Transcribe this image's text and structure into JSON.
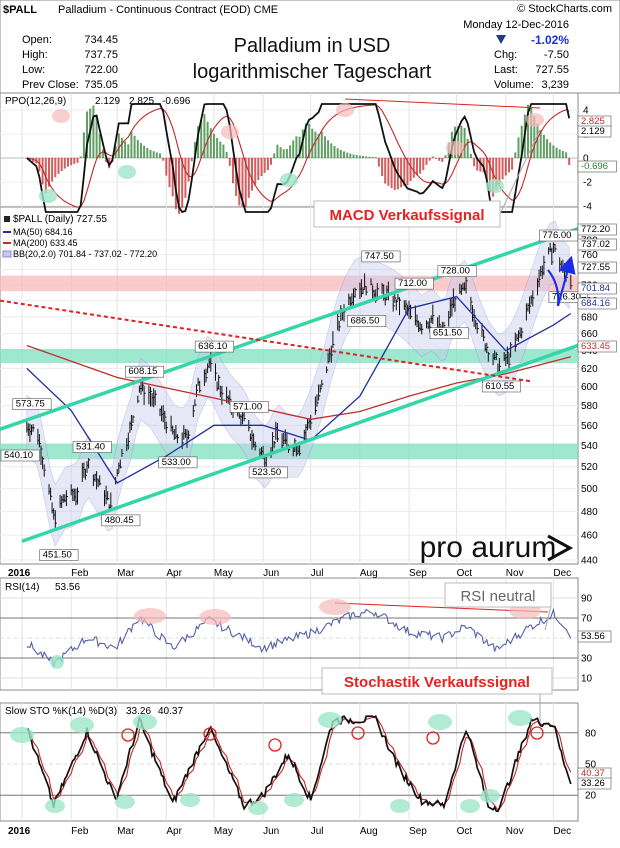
{
  "header": {
    "symbol": "$PALL",
    "description": "Palladium - Continuous Contract (EOD) CME",
    "copyright": "© StockCharts.com",
    "date": "Monday 12-Dec-2016",
    "open_label": "Open:",
    "open": "734.45",
    "high_label": "High:",
    "high": "737.75",
    "low_label": "Low:",
    "low": "722.00",
    "prevclose_label": "Prev Close:",
    "prevclose": "735.05",
    "pct_change": "-1.02%",
    "chg_label": "Chg:",
    "chg": "-7.50",
    "last_label": "Last:",
    "last": "727.55",
    "volume_label": "Volume:",
    "volume": "3,239"
  },
  "overlay_text": {
    "title_line1": "Palladium in USD",
    "title_line2": "logarithmischer Tageschart",
    "macd_signal": "MACD Verkaufssignal",
    "rsi_neutral": "RSI neutral",
    "stoch_signal": "Stochastik Verkaufssignal",
    "logo": "pro aurum"
  },
  "colors": {
    "ma50": "#1f2f9e",
    "ma200": "#c0302a",
    "bb": "#8a8fcf",
    "channel": "#33d6a6",
    "support_band": "#7fe0c0",
    "resistance_band": "#f7b9b9",
    "callout_red": "#e82020",
    "arrow_blue": "#1a2ee8",
    "pos_bar": "#2e7d32",
    "neg_bar": "#c62828"
  },
  "chart_data": [
    {
      "type": "line",
      "panel": "ppo",
      "legend": {
        "label": "PPO(12,26,9)",
        "v1": "2.129",
        "v2": "2.825",
        "v3": "-0.696"
      },
      "yticks": [
        "4",
        "2",
        "0",
        "-2",
        "-4"
      ],
      "right_labels": [
        "2.825",
        "2.129",
        "-0.696"
      ]
    },
    {
      "type": "line",
      "panel": "price",
      "legend": {
        "series": "$PALL (Daily) 727.55",
        "ma50": "MA(50) 684.16",
        "ma200": "MA(200) 633.45",
        "bb": "BB(20,2.0) 701.84 - 737.02 - 772.20"
      },
      "yscale": "log",
      "ylim": [
        440,
        800
      ],
      "yticks": [
        "780",
        "760",
        "740",
        "720",
        "700",
        "680",
        "660",
        "640",
        "620",
        "600",
        "580",
        "560",
        "540",
        "520",
        "500",
        "480",
        "460",
        "440"
      ],
      "right_labels": [
        "772.20",
        "737.02",
        "727.55",
        "701.84",
        "684.16",
        "633.45"
      ],
      "left_labels": [
        "540.10"
      ],
      "x_labels": [
        "2016",
        "Feb",
        "Mar",
        "Apr",
        "May",
        "Jun",
        "Jul",
        "Aug",
        "Sep",
        "Oct",
        "Nov",
        "Dec"
      ],
      "annotations": [
        {
          "text": "573.75",
          "date": "2016-01-04",
          "value": 573.75
        },
        {
          "text": "451.50",
          "date": "2016-01-21",
          "value": 451.5
        },
        {
          "text": "531.40",
          "date": "2016-02-11",
          "value": 531.4
        },
        {
          "text": "480.45",
          "date": "2016-02-29",
          "value": 480.45
        },
        {
          "text": "608.15",
          "date": "2016-03-15",
          "value": 608.15
        },
        {
          "text": "533.00",
          "date": "2016-04-05",
          "value": 533.0
        },
        {
          "text": "636.10",
          "date": "2016-04-28",
          "value": 636.1
        },
        {
          "text": "571.00",
          "date": "2016-05-20",
          "value": 571.0
        },
        {
          "text": "523.50",
          "date": "2016-06-01",
          "value": 523.5
        },
        {
          "text": "747.50",
          "date": "2016-08-11",
          "value": 747.5
        },
        {
          "text": "686.50",
          "date": "2016-08-02",
          "value": 686.5
        },
        {
          "text": "712.00",
          "date": "2016-09-01",
          "value": 712.0
        },
        {
          "text": "728.00",
          "date": "2016-09-28",
          "value": 728.0
        },
        {
          "text": "651.50",
          "date": "2016-09-23",
          "value": 651.5
        },
        {
          "text": "610.55",
          "date": "2016-10-26",
          "value": 610.55
        },
        {
          "text": "776.00",
          "date": "2016-12-01",
          "value": 776.0
        },
        {
          "text": "716.30",
          "date": "2016-12-07",
          "value": 716.3
        }
      ],
      "series": [
        {
          "name": "$PALL (Daily)",
          "kind": "ohlc",
          "x": [
            "2016-01-04",
            "2016-01-11",
            "2016-01-15",
            "2016-01-21",
            "2016-01-28",
            "2016-02-05",
            "2016-02-11",
            "2016-02-19",
            "2016-02-26",
            "2016-03-02",
            "2016-03-10",
            "2016-03-15",
            "2016-03-22",
            "2016-03-31",
            "2016-04-07",
            "2016-04-14",
            "2016-04-21",
            "2016-04-28",
            "2016-05-05",
            "2016-05-12",
            "2016-05-20",
            "2016-05-27",
            "2016-06-03",
            "2016-06-10",
            "2016-06-17",
            "2016-06-24",
            "2016-07-01",
            "2016-07-08",
            "2016-07-15",
            "2016-07-22",
            "2016-07-29",
            "2016-08-05",
            "2016-08-11",
            "2016-08-19",
            "2016-08-26",
            "2016-09-01",
            "2016-09-09",
            "2016-09-16",
            "2016-09-23",
            "2016-09-29",
            "2016-10-07",
            "2016-10-14",
            "2016-10-21",
            "2016-10-28",
            "2016-11-04",
            "2016-11-10",
            "2016-11-17",
            "2016-11-24",
            "2016-12-01",
            "2016-12-07",
            "2016-12-12"
          ],
          "values": [
            560,
            552,
            520,
            475,
            492,
            496,
            523,
            503,
            485,
            522,
            560,
            600,
            590,
            566,
            548,
            548,
            600,
            626,
            598,
            580,
            566,
            540,
            528,
            552,
            540,
            540,
            566,
            600,
            650,
            690,
            714,
            720,
            712,
            705,
            696,
            685,
            670,
            678,
            660,
            700,
            715,
            672,
            640,
            622,
            635,
            660,
            700,
            742,
            770,
            740,
            727.55
          ]
        },
        {
          "name": "MA(50)",
          "kind": "ma50",
          "x": [
            "2016-01-04",
            "2016-02-01",
            "2016-03-01",
            "2016-04-01",
            "2016-05-01",
            "2016-06-01",
            "2016-07-01",
            "2016-08-01",
            "2016-09-01",
            "2016-10-01",
            "2016-11-01",
            "2016-12-01",
            "2016-12-12"
          ],
          "values": [
            620,
            575,
            505,
            530,
            560,
            560,
            545,
            590,
            690,
            705,
            640,
            670,
            684
          ]
        },
        {
          "name": "MA(200)",
          "kind": "ma200",
          "x": [
            "2016-01-04",
            "2016-03-01",
            "2016-05-01",
            "2016-07-01",
            "2016-08-01",
            "2016-09-01",
            "2016-10-01",
            "2016-11-01",
            "2016-12-12"
          ],
          "values": [
            646,
            610,
            588,
            566,
            574,
            590,
            604,
            614,
            633
          ]
        }
      ]
    },
    {
      "type": "line",
      "panel": "rsi",
      "legend": {
        "label": "RSI(14)",
        "value": "53.56"
      },
      "yticks": [
        "90",
        "70",
        "50",
        "30",
        "10"
      ],
      "right_labels": [
        "53.56"
      ],
      "series": [
        {
          "name": "RSI(14)",
          "x": [
            "2016-01-04",
            "2016-01-21",
            "2016-02-11",
            "2016-02-29",
            "2016-03-15",
            "2016-04-05",
            "2016-04-28",
            "2016-06-01",
            "2016-07-01",
            "2016-07-29",
            "2016-08-11",
            "2016-09-01",
            "2016-09-23",
            "2016-10-07",
            "2016-10-26",
            "2016-11-17",
            "2016-12-01",
            "2016-12-07",
            "2016-12-12"
          ],
          "values": [
            45,
            24,
            50,
            40,
            71,
            40,
            68,
            40,
            55,
            74,
            76,
            56,
            50,
            62,
            38,
            62,
            74,
            65,
            53.56
          ]
        }
      ]
    },
    {
      "type": "line",
      "panel": "stochastic",
      "legend": {
        "label": "Slow STO %K(14) %D(3)",
        "k": "33.26",
        "d": "40.37"
      },
      "yticks": [
        "80",
        "50",
        "20"
      ],
      "right_labels": [
        "40.37",
        "33.26"
      ],
      "x_labels": [
        "2016",
        "Feb",
        "Mar",
        "Apr",
        "May",
        "Jun",
        "Jul",
        "Aug",
        "Sep",
        "Oct",
        "Nov",
        "Dec"
      ],
      "series": [
        {
          "name": "%K",
          "x": [
            "2016-01-04",
            "2016-01-21",
            "2016-02-11",
            "2016-02-29",
            "2016-03-15",
            "2016-04-05",
            "2016-04-28",
            "2016-05-20",
            "2016-06-01",
            "2016-06-17",
            "2016-07-01",
            "2016-07-15",
            "2016-08-11",
            "2016-08-26",
            "2016-09-09",
            "2016-09-23",
            "2016-10-07",
            "2016-10-21",
            "2016-10-28",
            "2016-11-17",
            "2016-12-01",
            "2016-12-07",
            "2016-12-12"
          ],
          "values": [
            85,
            10,
            82,
            15,
            92,
            12,
            85,
            10,
            20,
            60,
            15,
            92,
            93,
            45,
            15,
            10,
            85,
            10,
            8,
            92,
            88,
            55,
            33.26
          ]
        }
      ]
    }
  ]
}
